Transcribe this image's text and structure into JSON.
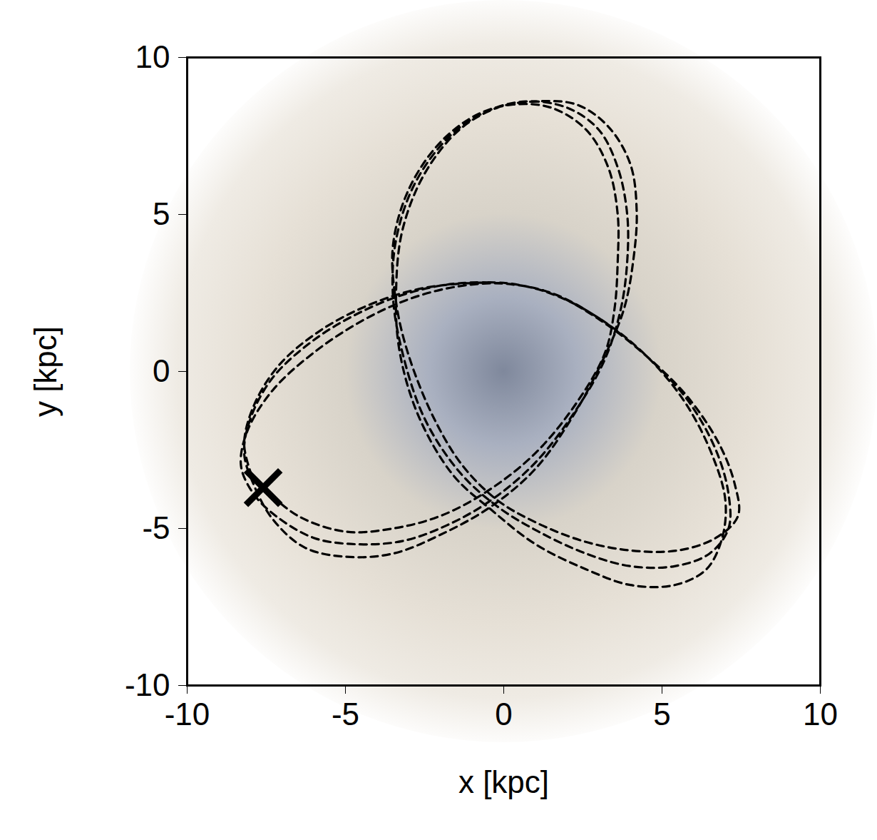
{
  "chart_data": {
    "type": "line",
    "xlabel": "x [kpc]",
    "ylabel": "y [kpc]",
    "xlim": [
      -10,
      10
    ],
    "ylim": [
      -10,
      10
    ],
    "xticks": [
      -10,
      -5,
      0,
      5,
      10
    ],
    "yticks": [
      -10,
      -5,
      0,
      5,
      10
    ],
    "color": "#000000",
    "line_style": "dashed",
    "x": [
      -7.6,
      -6.5,
      -5,
      -3.5,
      -2,
      -0.5,
      1,
      2.3,
      3.2,
      3.5,
      3.6,
      3.6,
      3.3,
      2.6,
      1.5,
      0.3,
      -0.8,
      -2,
      -3,
      -3.5,
      -3.4,
      -3,
      -2.2,
      -1.3,
      -0.2,
      1,
      2.5,
      4,
      5.5,
      6.7,
      7.4,
      7.3,
      6.8,
      5.8,
      4.5,
      3,
      1.5,
      0,
      -1.5,
      -3,
      -4.5,
      -6,
      -7.3,
      -8.1,
      -8.3,
      -7.9,
      -7.2,
      -6,
      -4.7,
      -3.2,
      -1.8,
      -0.4,
      1,
      2.3,
      3.2,
      3.7,
      3.9,
      3.9,
      3.6,
      3,
      2,
      0.7,
      -0.5,
      -1.7,
      -2.8,
      -3.4,
      -3.5,
      -3.2,
      -2.5,
      -1.4,
      -0.2,
      1.1,
      2.6,
      4,
      5.4,
      6.5,
      7.1,
      7.1,
      6.7,
      5.8,
      4.6,
      3.1,
      1.5,
      0,
      -1.5,
      -3,
      -4.5,
      -6,
      -7.3,
      -8,
      -8.2,
      -7.9,
      -7.3,
      -6.3,
      -5,
      -3.5,
      -2,
      -0.4,
      1,
      2.2,
      3.1,
      3.8,
      4.1,
      4.2,
      4,
      3.3,
      2.3,
      1,
      -0.2,
      -1.4,
      -2.5,
      -3.2,
      -3.4,
      -3.3,
      -2.7,
      -1.6,
      -0.4,
      1,
      2.6,
      4,
      5.4,
      6.4,
      6.9,
      7,
      6.6,
      5.8,
      4.7,
      3.3,
      1.7,
      0.2,
      -1.3,
      -2.8,
      -4.3,
      -5.8,
      -7.1,
      -7.9,
      -8.2,
      -8
    ],
    "y": [
      -3.7,
      -4.6,
      -5.1,
      -5,
      -4.6,
      -3.8,
      -2.6,
      -1,
      0.6,
      2,
      3.5,
      5,
      6.5,
      7.7,
      8.4,
      8.5,
      8.2,
      7.3,
      5.8,
      4,
      2.2,
      0.5,
      -1.5,
      -3,
      -4.1,
      -4.8,
      -5.4,
      -5.7,
      -5.7,
      -5.3,
      -4.6,
      -3.6,
      -2.3,
      -0.8,
      0.5,
      1.7,
      2.5,
      2.8,
      2.7,
      2.3,
      1.6,
      0.6,
      -0.6,
      -1.9,
      -3,
      -3.9,
      -4.6,
      -5.3,
      -5.5,
      -5.4,
      -4.9,
      -4.1,
      -2.9,
      -1.2,
      0.4,
      2,
      3.5,
      5,
      6.5,
      7.7,
      8.4,
      8.6,
      8.3,
      7.5,
      6,
      4.2,
      2.4,
      0.6,
      -1.5,
      -3.2,
      -4.3,
      -5.1,
      -5.8,
      -6.2,
      -6.2,
      -5.8,
      -5,
      -3.9,
      -2.5,
      -0.9,
      0.4,
      1.6,
      2.5,
      2.8,
      2.8,
      2.5,
      1.9,
      1,
      -0.2,
      -1.5,
      -2.6,
      -3.6,
      -4.7,
      -5.6,
      -5.9,
      -5.8,
      -5.2,
      -4.3,
      -3.1,
      -1.4,
      0.3,
      2,
      3.6,
      5.1,
      6.6,
      7.8,
      8.5,
      8.6,
      8.4,
      7.7,
      6.3,
      4.5,
      2.6,
      0.7,
      -1.4,
      -3.3,
      -4.4,
      -5.5,
      -6.3,
      -6.8,
      -6.8,
      -6.3,
      -5.3,
      -4.1,
      -2.7,
      -1.1,
      0.3,
      1.5,
      2.4,
      2.8,
      2.8,
      2.6,
      2.1,
      1.3,
      0.2,
      -1.1,
      -2.3,
      -3.2
    ],
    "start": {
      "x": -7.6,
      "y": -3.7,
      "marker": "x"
    }
  }
}
